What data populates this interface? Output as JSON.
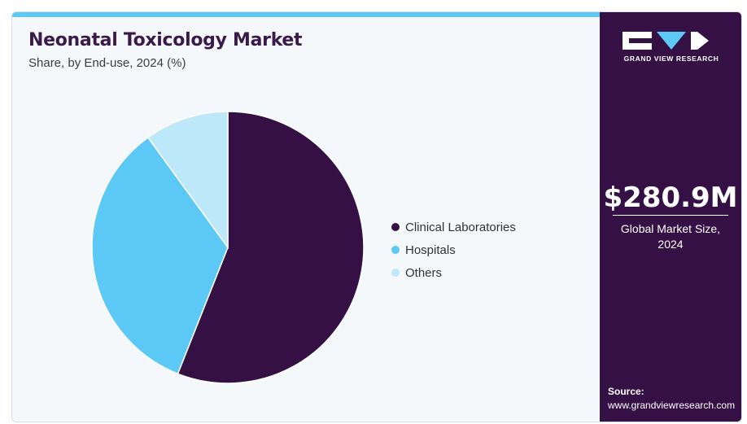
{
  "header": {
    "title": "Neonatal Toxicology Market",
    "subtitle": "Share, by End-use, 2024 (%)"
  },
  "chart_data": {
    "type": "pie",
    "title": "Neonatal Toxicology Market",
    "subtitle": "Share, by End-use, 2024 (%)",
    "categories": [
      "Clinical Laboratories",
      "Hospitals",
      "Others"
    ],
    "values": [
      56,
      34,
      10
    ],
    "colors": [
      "#351045",
      "#5bc8f5",
      "#bde8fa"
    ],
    "legend_position": "right"
  },
  "sidebar": {
    "logo_text": "GRAND VIEW RESEARCH",
    "market_value": "$280.9M",
    "market_label_line1": "Global Market Size,",
    "market_label_line2": "2024",
    "source_label": "Source:",
    "source_url": "www.grandviewresearch.com"
  }
}
